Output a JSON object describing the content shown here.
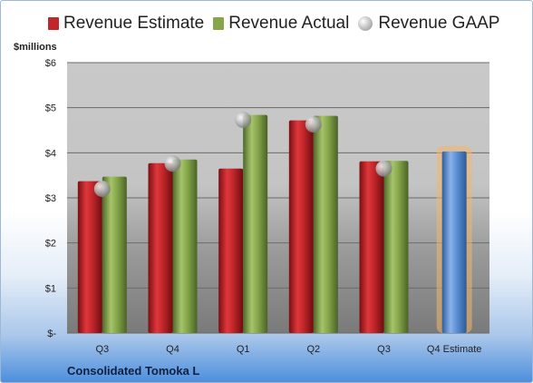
{
  "units_label": "$millions",
  "company": "Consolidated Tomoka L",
  "legend": [
    {
      "label": "Revenue Estimate",
      "color": "#c0262a",
      "kind": "bar"
    },
    {
      "label": "Revenue Actual",
      "color": "#86a64a",
      "kind": "bar"
    },
    {
      "label": "Revenue GAAP",
      "color": "#b5b5b5",
      "kind": "marker"
    }
  ],
  "chart_data": {
    "type": "bar",
    "categories": [
      "Q3",
      "Q4",
      "Q1",
      "Q2",
      "Q3",
      "Q4 Estimate"
    ],
    "ylim": [
      0,
      6
    ],
    "yticks": [
      0,
      1,
      2,
      3,
      4,
      5,
      6
    ],
    "ytick_labels": [
      "$-",
      "$1",
      "$2",
      "$3",
      "$4",
      "$5",
      "$6"
    ],
    "series": [
      {
        "name": "Revenue Estimate",
        "color": "#c0262a",
        "values": [
          3.37,
          3.77,
          3.65,
          4.72,
          3.81,
          null
        ]
      },
      {
        "name": "Revenue Actual",
        "color": "#86a64a",
        "values": [
          3.47,
          3.85,
          4.84,
          4.82,
          3.82,
          null
        ]
      },
      {
        "name": "Revenue GAAP",
        "color": "#b5b5b5",
        "values": [
          3.2,
          3.76,
          4.73,
          4.63,
          3.65,
          null
        ]
      },
      {
        "name": "Q4 Estimate",
        "color": "#5b8fd4",
        "values": [
          null,
          null,
          null,
          null,
          null,
          4.03
        ]
      }
    ],
    "grid": true
  }
}
